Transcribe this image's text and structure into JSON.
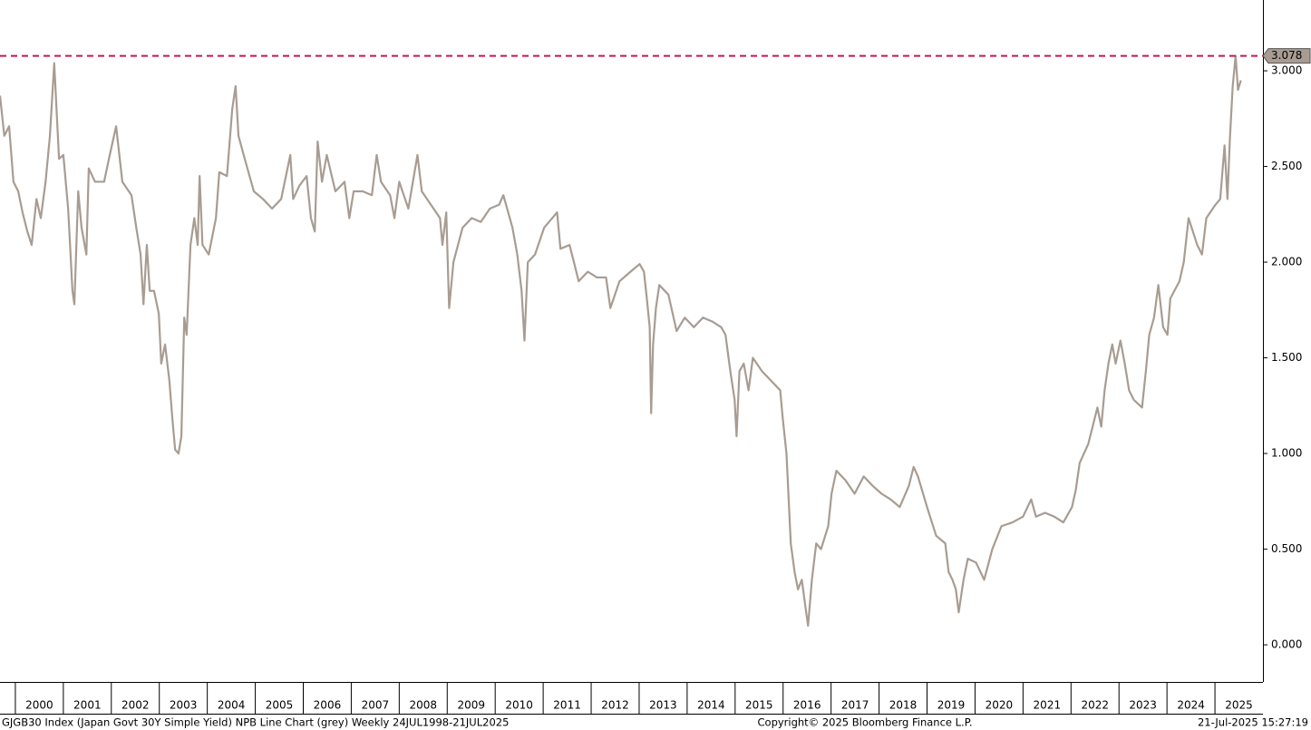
{
  "chart_data": {
    "type": "line",
    "color": "#a89c92",
    "x": [
      1999.68,
      1999.77,
      1999.87,
      1999.96,
      2000.06,
      2000.15,
      2000.25,
      2000.34,
      2000.44,
      2000.53,
      2000.63,
      2000.72,
      2000.81,
      2000.91,
      2001.0,
      2001.1,
      2001.19,
      2001.23,
      2001.31,
      2001.38,
      2001.48,
      2001.53,
      2001.66,
      2001.85,
      2001.95,
      2002.1,
      2002.23,
      2002.42,
      2002.52,
      2002.61,
      2002.67,
      2002.74,
      2002.8,
      2002.89,
      2002.99,
      2003.04,
      2003.12,
      2003.21,
      2003.27,
      2003.33,
      2003.4,
      2003.46,
      2003.52,
      2003.57,
      2003.65,
      2003.73,
      2003.8,
      2003.84,
      2003.9,
      2004.03,
      2004.18,
      2004.25,
      2004.41,
      2004.52,
      2004.59,
      2004.65,
      2004.78,
      2004.97,
      2005.16,
      2005.35,
      2005.54,
      2005.73,
      2005.79,
      2005.92,
      2006.07,
      2006.16,
      2006.24,
      2006.3,
      2006.39,
      2006.49,
      2006.67,
      2006.86,
      2006.96,
      2007.05,
      2007.24,
      2007.43,
      2007.53,
      2007.62,
      2007.81,
      2007.9,
      2008.0,
      2008.19,
      2008.38,
      2008.47,
      2008.66,
      2008.85,
      2008.9,
      2008.98,
      2009.04,
      2009.13,
      2009.32,
      2009.51,
      2009.7,
      2009.89,
      2010.08,
      2010.17,
      2010.36,
      2010.46,
      2010.55,
      2010.61,
      2010.68,
      2010.83,
      2011.02,
      2011.29,
      2011.36,
      2011.55,
      2011.74,
      2011.93,
      2012.12,
      2012.31,
      2012.4,
      2012.59,
      2012.82,
      2013.01,
      2013.1,
      2013.16,
      2013.22,
      2013.25,
      2013.29,
      2013.35,
      2013.42,
      2013.61,
      2013.78,
      2013.95,
      2014.14,
      2014.33,
      2014.52,
      2014.71,
      2014.8,
      2014.9,
      2014.99,
      2015.03,
      2015.09,
      2015.18,
      2015.28,
      2015.37,
      2015.56,
      2015.75,
      2015.94,
      2015.99,
      2016.07,
      2016.16,
      2016.24,
      2016.31,
      2016.39,
      2016.47,
      2016.52,
      2016.6,
      2016.69,
      2016.79,
      2016.94,
      2017.01,
      2017.11,
      2017.3,
      2017.49,
      2017.68,
      2017.87,
      2018.05,
      2018.24,
      2018.43,
      2018.62,
      2018.72,
      2018.81,
      2019.0,
      2019.19,
      2019.38,
      2019.45,
      2019.53,
      2019.6,
      2019.66,
      2019.76,
      2019.85,
      2020.02,
      2020.19,
      2020.36,
      2020.55,
      2020.78,
      2021.0,
      2021.17,
      2021.27,
      2021.46,
      2021.65,
      2021.84,
      2022.02,
      2022.1,
      2022.18,
      2022.36,
      2022.55,
      2022.63,
      2022.7,
      2022.78,
      2022.86,
      2022.93,
      2023.03,
      2023.12,
      2023.21,
      2023.31,
      2023.48,
      2023.56,
      2023.63,
      2023.73,
      2023.82,
      2023.92,
      2024.01,
      2024.07,
      2024.26,
      2024.35,
      2024.45,
      2024.63,
      2024.73,
      2024.82,
      2025.01,
      2025.11,
      2025.2,
      2025.26,
      2025.31,
      2025.37,
      2025.43,
      2025.48,
      2025.54
    ],
    "values": [
      2.87,
      2.66,
      2.71,
      2.42,
      2.37,
      2.26,
      2.16,
      2.09,
      2.33,
      2.23,
      2.42,
      2.66,
      3.04,
      2.54,
      2.56,
      2.28,
      1.85,
      1.78,
      2.37,
      2.18,
      2.04,
      2.49,
      2.42,
      2.42,
      2.54,
      2.71,
      2.42,
      2.35,
      2.18,
      2.04,
      1.78,
      2.09,
      1.85,
      1.85,
      1.73,
      1.47,
      1.57,
      1.38,
      1.19,
      1.02,
      1.0,
      1.09,
      1.71,
      1.62,
      2.09,
      2.23,
      2.09,
      2.45,
      2.09,
      2.04,
      2.23,
      2.47,
      2.45,
      2.8,
      2.92,
      2.66,
      2.54,
      2.37,
      2.33,
      2.28,
      2.33,
      2.56,
      2.33,
      2.4,
      2.45,
      2.23,
      2.16,
      2.63,
      2.42,
      2.56,
      2.37,
      2.42,
      2.23,
      2.37,
      2.37,
      2.35,
      2.56,
      2.42,
      2.35,
      2.23,
      2.42,
      2.28,
      2.56,
      2.37,
      2.3,
      2.23,
      2.09,
      2.26,
      1.76,
      2.0,
      2.18,
      2.23,
      2.21,
      2.28,
      2.3,
      2.35,
      2.18,
      2.04,
      1.85,
      1.59,
      2.0,
      2.04,
      2.18,
      2.26,
      2.07,
      2.09,
      1.9,
      1.95,
      1.92,
      1.92,
      1.76,
      1.9,
      1.95,
      1.99,
      1.95,
      1.81,
      1.66,
      1.21,
      1.57,
      1.76,
      1.88,
      1.83,
      1.64,
      1.71,
      1.66,
      1.71,
      1.69,
      1.66,
      1.62,
      1.43,
      1.28,
      1.09,
      1.43,
      1.47,
      1.33,
      1.5,
      1.43,
      1.38,
      1.33,
      1.19,
      1.0,
      0.53,
      0.38,
      0.29,
      0.34,
      0.19,
      0.1,
      0.34,
      0.53,
      0.5,
      0.62,
      0.79,
      0.91,
      0.86,
      0.79,
      0.88,
      0.83,
      0.79,
      0.76,
      0.72,
      0.83,
      0.93,
      0.88,
      0.72,
      0.57,
      0.53,
      0.38,
      0.34,
      0.29,
      0.17,
      0.34,
      0.45,
      0.43,
      0.34,
      0.5,
      0.62,
      0.64,
      0.67,
      0.76,
      0.67,
      0.69,
      0.67,
      0.64,
      0.72,
      0.81,
      0.95,
      1.05,
      1.24,
      1.14,
      1.33,
      1.47,
      1.57,
      1.47,
      1.59,
      1.47,
      1.33,
      1.28,
      1.24,
      1.43,
      1.62,
      1.71,
      1.88,
      1.66,
      1.62,
      1.81,
      1.9,
      2.0,
      2.23,
      2.09,
      2.04,
      2.23,
      2.3,
      2.33,
      2.61,
      2.33,
      2.64,
      2.92,
      3.078,
      2.9,
      2.95
    ],
    "xlim": [
      1999.68,
      2026.0
    ],
    "xticks": [
      2000,
      2001,
      2002,
      2003,
      2004,
      2005,
      2006,
      2007,
      2008,
      2009,
      2010,
      2011,
      2012,
      2013,
      2014,
      2015,
      2016,
      2017,
      2018,
      2019,
      2020,
      2021,
      2022,
      2023,
      2024,
      2025
    ],
    "ylim": [
      -0.194,
      3.37
    ],
    "yticks": [
      {
        "value": 0,
        "label": "0.000"
      },
      {
        "value": 0.5,
        "label": "0.500"
      },
      {
        "value": 1,
        "label": "1.000"
      },
      {
        "value": 1.5,
        "label": "1.500"
      },
      {
        "value": 2,
        "label": "2.000"
      },
      {
        "value": 2.5,
        "label": "2.500"
      },
      {
        "value": 3,
        "label": "3.000"
      }
    ],
    "ref_line": {
      "value": 3.078,
      "color": "#c8174f"
    },
    "footer": {
      "left": "GJGB30 Index (Japan Govt 30Y Simple Yield) NPB Line Chart (grey)  Weekly 24JUL1998-21JUL2025",
      "center": "Copyright© 2025 Bloomberg Finance L.P.",
      "right": "21-Jul-2025 15:27:19"
    }
  }
}
